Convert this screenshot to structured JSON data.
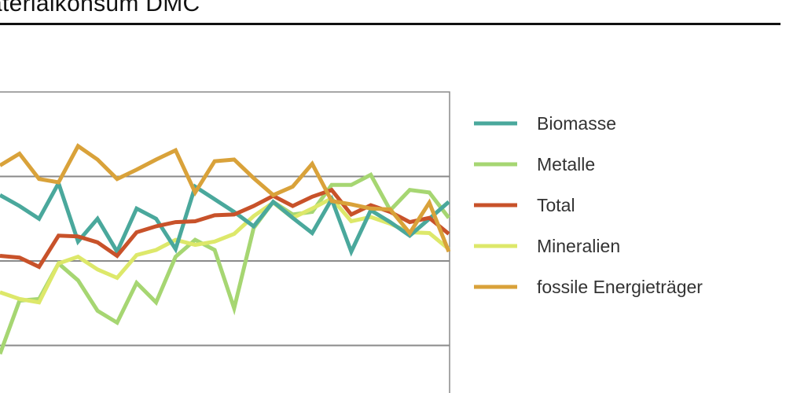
{
  "chart_data": {
    "type": "line",
    "title": "aterialkonsum DMC",
    "xlabel": "",
    "ylabel": "",
    "grid": true,
    "legend_position": "right",
    "ylim": [
      0,
      4
    ],
    "gridlines": [
      1,
      2,
      3
    ],
    "series": [
      {
        "name": "Biomasse",
        "color": "#4aa89c",
        "values": [
          2.78,
          2.65,
          2.5,
          2.92,
          2.23,
          2.5,
          2.11,
          2.62,
          2.5,
          2.14,
          2.88,
          2.73,
          2.58,
          2.41,
          2.7,
          2.51,
          2.33,
          2.73,
          2.11,
          2.6,
          2.46,
          2.3,
          2.5,
          2.7
        ]
      },
      {
        "name": "Metalle",
        "color": "#a6d672",
        "values": [
          0.9,
          1.53,
          1.55,
          1.97,
          1.77,
          1.41,
          1.27,
          1.74,
          1.51,
          2.05,
          2.25,
          2.13,
          1.44,
          2.39,
          2.7,
          2.55,
          2.58,
          2.9,
          2.9,
          3.02,
          2.6,
          2.84,
          2.81,
          2.51
        ]
      },
      {
        "name": "Total",
        "color": "#c8522a",
        "values": [
          2.06,
          2.04,
          1.93,
          2.3,
          2.29,
          2.22,
          2.06,
          2.34,
          2.41,
          2.46,
          2.47,
          2.54,
          2.55,
          2.65,
          2.77,
          2.65,
          2.76,
          2.84,
          2.55,
          2.66,
          2.58,
          2.46,
          2.51,
          2.32
        ]
      },
      {
        "name": "Mineralien",
        "color": "#dde86a",
        "values": [
          1.63,
          1.55,
          1.51,
          1.97,
          2.05,
          1.9,
          1.8,
          2.07,
          2.13,
          2.25,
          2.19,
          2.23,
          2.32,
          2.53,
          2.69,
          2.51,
          2.62,
          2.74,
          2.47,
          2.52,
          2.44,
          2.34,
          2.33,
          2.14
        ]
      },
      {
        "name": "fossile Energieträger",
        "color": "#d9a23a",
        "values": [
          3.13,
          3.27,
          2.97,
          2.93,
          3.36,
          3.2,
          2.97,
          3.08,
          3.2,
          3.31,
          2.81,
          3.18,
          3.2,
          2.98,
          2.78,
          2.88,
          3.15,
          2.71,
          2.67,
          2.62,
          2.61,
          2.33,
          2.69,
          2.11
        ]
      }
    ]
  }
}
